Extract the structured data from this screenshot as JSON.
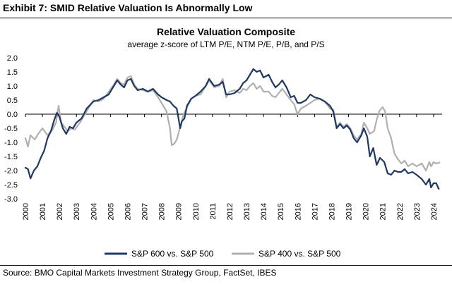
{
  "header": {
    "exhibit_title": "Exhibit 7: SMID Relative Valuation Is Abnormally Low"
  },
  "footer": {
    "source": "Source: BMO Capital Markets Investment Strategy Group, FactSet, IBES"
  },
  "chart_data": {
    "type": "line",
    "title": "Relative Valuation Composite",
    "subtitle": "average z-score of LTM P/E, NTM P/E, P/B, and P/S",
    "xlabel": "",
    "ylabel": "",
    "xlim": [
      2000,
      2024.5
    ],
    "ylim": [
      -3.0,
      2.0
    ],
    "y_ticks": [
      2.0,
      1.5,
      1.0,
      0.5,
      0.0,
      -0.5,
      -1.0,
      -1.5,
      -2.0,
      -2.5,
      -3.0
    ],
    "y_tick_labels": [
      "2.0",
      "1.5",
      "1.0",
      "0.5",
      "0.0",
      "-0.5",
      "-1.0",
      "-1.5",
      "-2.0",
      "-2.5",
      "-3.0"
    ],
    "x_ticks": [
      2000,
      2001,
      2002,
      2003,
      2004,
      2005,
      2006,
      2007,
      2008,
      2009,
      2010,
      2011,
      2012,
      2013,
      2014,
      2015,
      2016,
      2017,
      2018,
      2019,
      2020,
      2021,
      2022,
      2023,
      2024
    ],
    "x_tick_labels": [
      "2000",
      "2001",
      "2002",
      "2003",
      "2004",
      "2005",
      "2006",
      "2007",
      "2008",
      "2009",
      "2010",
      "2011",
      "2012",
      "2013",
      "2014",
      "2015",
      "2016",
      "2017",
      "2018",
      "2019",
      "2020",
      "2021",
      "2022",
      "2023",
      "2024"
    ],
    "grid": false,
    "legend_position": "bottom",
    "series": [
      {
        "name": "S&P 600 vs. S&P 500",
        "color": "#1f3864",
        "points": [
          [
            2000.0,
            -1.9
          ],
          [
            2000.15,
            -1.95
          ],
          [
            2000.3,
            -2.28
          ],
          [
            2000.5,
            -2.0
          ],
          [
            2000.7,
            -1.85
          ],
          [
            2000.9,
            -1.55
          ],
          [
            2001.1,
            -1.3
          ],
          [
            2001.3,
            -0.85
          ],
          [
            2001.5,
            -0.6
          ],
          [
            2001.7,
            -0.2
          ],
          [
            2001.85,
            0.05
          ],
          [
            2002.0,
            -0.1
          ],
          [
            2002.2,
            -0.5
          ],
          [
            2002.4,
            -0.7
          ],
          [
            2002.6,
            -0.45
          ],
          [
            2002.8,
            -0.5
          ],
          [
            2003.0,
            -0.3
          ],
          [
            2003.3,
            -0.15
          ],
          [
            2003.6,
            0.2
          ],
          [
            2004.0,
            0.45
          ],
          [
            2004.3,
            0.5
          ],
          [
            2004.6,
            0.6
          ],
          [
            2004.9,
            0.7
          ],
          [
            2005.2,
            1.0
          ],
          [
            2005.4,
            1.2
          ],
          [
            2005.6,
            1.05
          ],
          [
            2005.8,
            0.95
          ],
          [
            2006.0,
            1.2
          ],
          [
            2006.2,
            1.25
          ],
          [
            2006.4,
            1.0
          ],
          [
            2006.6,
            0.85
          ],
          [
            2006.9,
            0.9
          ],
          [
            2007.2,
            0.8
          ],
          [
            2007.5,
            0.9
          ],
          [
            2007.8,
            0.7
          ],
          [
            2008.0,
            0.6
          ],
          [
            2008.3,
            0.5
          ],
          [
            2008.5,
            0.45
          ],
          [
            2008.7,
            0.3
          ],
          [
            2008.9,
            0.2
          ],
          [
            2009.1,
            -0.5
          ],
          [
            2009.2,
            -0.25
          ],
          [
            2009.35,
            -0.15
          ],
          [
            2009.5,
            0.3
          ],
          [
            2009.75,
            0.55
          ],
          [
            2010.0,
            0.65
          ],
          [
            2010.3,
            0.8
          ],
          [
            2010.6,
            1.0
          ],
          [
            2010.8,
            1.25
          ],
          [
            2011.1,
            1.0
          ],
          [
            2011.4,
            1.05
          ],
          [
            2011.6,
            1.15
          ],
          [
            2011.8,
            0.7
          ],
          [
            2012.0,
            0.7
          ],
          [
            2012.3,
            0.75
          ],
          [
            2012.6,
            0.9
          ],
          [
            2012.8,
            1.1
          ],
          [
            2013.0,
            1.2
          ],
          [
            2013.2,
            1.4
          ],
          [
            2013.4,
            1.6
          ],
          [
            2013.6,
            1.5
          ],
          [
            2013.8,
            1.55
          ],
          [
            2014.0,
            1.3
          ],
          [
            2014.3,
            1.4
          ],
          [
            2014.5,
            1.15
          ],
          [
            2014.7,
            0.95
          ],
          [
            2014.9,
            1.05
          ],
          [
            2015.1,
            1.2
          ],
          [
            2015.35,
            0.95
          ],
          [
            2015.6,
            0.6
          ],
          [
            2015.8,
            0.65
          ],
          [
            2016.0,
            0.4
          ],
          [
            2016.2,
            0.4
          ],
          [
            2016.5,
            0.5
          ],
          [
            2016.75,
            0.7
          ],
          [
            2017.0,
            0.6
          ],
          [
            2017.3,
            0.55
          ],
          [
            2017.6,
            0.45
          ],
          [
            2017.9,
            0.3
          ],
          [
            2018.1,
            0.1
          ],
          [
            2018.3,
            -0.5
          ],
          [
            2018.5,
            -0.35
          ],
          [
            2018.7,
            -0.5
          ],
          [
            2018.9,
            -0.4
          ],
          [
            2019.1,
            -0.55
          ],
          [
            2019.3,
            -0.85
          ],
          [
            2019.5,
            -1.0
          ],
          [
            2019.75,
            -0.75
          ],
          [
            2019.9,
            -0.5
          ],
          [
            2020.1,
            -0.8
          ],
          [
            2020.25,
            -1.5
          ],
          [
            2020.45,
            -1.2
          ],
          [
            2020.65,
            -1.8
          ],
          [
            2020.85,
            -1.55
          ],
          [
            2021.1,
            -1.7
          ],
          [
            2021.3,
            -2.1
          ],
          [
            2021.5,
            -2.15
          ],
          [
            2021.7,
            -2.0
          ],
          [
            2021.9,
            -2.05
          ],
          [
            2022.1,
            -2.05
          ],
          [
            2022.3,
            -1.95
          ],
          [
            2022.5,
            -2.1
          ],
          [
            2022.75,
            -2.05
          ],
          [
            2023.0,
            -2.15
          ],
          [
            2023.3,
            -2.3
          ],
          [
            2023.55,
            -2.5
          ],
          [
            2023.75,
            -2.3
          ],
          [
            2023.85,
            -2.6
          ],
          [
            2024.0,
            -2.45
          ],
          [
            2024.15,
            -2.45
          ],
          [
            2024.3,
            -2.65
          ]
        ]
      },
      {
        "name": "S&P 400 vs. S&P 500",
        "color": "#b0b0b0",
        "points": [
          [
            2000.0,
            -0.85
          ],
          [
            2000.15,
            -1.15
          ],
          [
            2000.3,
            -0.75
          ],
          [
            2000.55,
            -0.9
          ],
          [
            2000.75,
            -0.7
          ],
          [
            2001.0,
            -0.5
          ],
          [
            2001.3,
            -0.75
          ],
          [
            2001.6,
            -0.55
          ],
          [
            2001.8,
            -0.3
          ],
          [
            2001.95,
            0.3
          ],
          [
            2002.1,
            -0.3
          ],
          [
            2002.3,
            -0.45
          ],
          [
            2002.5,
            -0.6
          ],
          [
            2002.7,
            -0.5
          ],
          [
            2002.9,
            -0.55
          ],
          [
            2003.2,
            -0.3
          ],
          [
            2003.5,
            0.0
          ],
          [
            2003.8,
            0.3
          ],
          [
            2004.0,
            0.5
          ],
          [
            2004.3,
            0.45
          ],
          [
            2004.6,
            0.55
          ],
          [
            2004.9,
            0.8
          ],
          [
            2005.2,
            1.05
          ],
          [
            2005.4,
            1.25
          ],
          [
            2005.6,
            1.1
          ],
          [
            2005.8,
            1.05
          ],
          [
            2006.0,
            1.3
          ],
          [
            2006.2,
            1.35
          ],
          [
            2006.4,
            1.05
          ],
          [
            2006.6,
            0.9
          ],
          [
            2006.9,
            0.85
          ],
          [
            2007.2,
            0.8
          ],
          [
            2007.5,
            0.85
          ],
          [
            2007.8,
            0.6
          ],
          [
            2008.0,
            0.4
          ],
          [
            2008.3,
            0.1
          ],
          [
            2008.5,
            -0.5
          ],
          [
            2008.6,
            -1.1
          ],
          [
            2008.75,
            -1.05
          ],
          [
            2008.9,
            -0.9
          ],
          [
            2009.1,
            -0.45
          ],
          [
            2009.3,
            0.0
          ],
          [
            2009.5,
            0.25
          ],
          [
            2009.75,
            0.55
          ],
          [
            2010.0,
            0.65
          ],
          [
            2010.3,
            0.7
          ],
          [
            2010.6,
            1.0
          ],
          [
            2010.8,
            1.2
          ],
          [
            2011.1,
            0.95
          ],
          [
            2011.4,
            1.0
          ],
          [
            2011.6,
            1.25
          ],
          [
            2011.8,
            0.6
          ],
          [
            2012.0,
            0.8
          ],
          [
            2012.3,
            0.85
          ],
          [
            2012.6,
            0.75
          ],
          [
            2012.8,
            0.9
          ],
          [
            2013.0,
            0.85
          ],
          [
            2013.2,
            1.0
          ],
          [
            2013.4,
            1.1
          ],
          [
            2013.6,
            0.9
          ],
          [
            2013.8,
            1.0
          ],
          [
            2014.0,
            0.8
          ],
          [
            2014.3,
            0.8
          ],
          [
            2014.5,
            0.65
          ],
          [
            2014.7,
            0.6
          ],
          [
            2014.9,
            0.75
          ],
          [
            2015.1,
            0.9
          ],
          [
            2015.35,
            0.7
          ],
          [
            2015.6,
            0.5
          ],
          [
            2015.8,
            0.35
          ],
          [
            2016.0,
            0.0
          ],
          [
            2016.2,
            0.2
          ],
          [
            2016.5,
            0.3
          ],
          [
            2016.75,
            0.4
          ],
          [
            2017.0,
            0.5
          ],
          [
            2017.3,
            0.55
          ],
          [
            2017.6,
            0.45
          ],
          [
            2017.9,
            0.2
          ],
          [
            2018.1,
            0.15
          ],
          [
            2018.3,
            -0.45
          ],
          [
            2018.5,
            -0.3
          ],
          [
            2018.7,
            -0.45
          ],
          [
            2018.9,
            -0.35
          ],
          [
            2019.1,
            -0.5
          ],
          [
            2019.3,
            -0.75
          ],
          [
            2019.5,
            -0.9
          ],
          [
            2019.75,
            -0.7
          ],
          [
            2019.9,
            -0.3
          ],
          [
            2020.1,
            -0.5
          ],
          [
            2020.25,
            -0.7
          ],
          [
            2020.5,
            -0.6
          ],
          [
            2020.65,
            -0.2
          ],
          [
            2020.8,
            0.1
          ],
          [
            2021.0,
            0.25
          ],
          [
            2021.15,
            0.1
          ],
          [
            2021.3,
            -0.5
          ],
          [
            2021.5,
            -0.85
          ],
          [
            2021.7,
            -1.4
          ],
          [
            2021.9,
            -1.6
          ],
          [
            2022.1,
            -1.75
          ],
          [
            2022.3,
            -1.65
          ],
          [
            2022.5,
            -1.85
          ],
          [
            2022.75,
            -1.75
          ],
          [
            2023.0,
            -1.85
          ],
          [
            2023.3,
            -1.75
          ],
          [
            2023.55,
            -2.0
          ],
          [
            2023.75,
            -1.7
          ],
          [
            2023.85,
            -1.85
          ],
          [
            2024.0,
            -1.7
          ],
          [
            2024.15,
            -1.75
          ],
          [
            2024.35,
            -1.72
          ]
        ]
      }
    ]
  }
}
